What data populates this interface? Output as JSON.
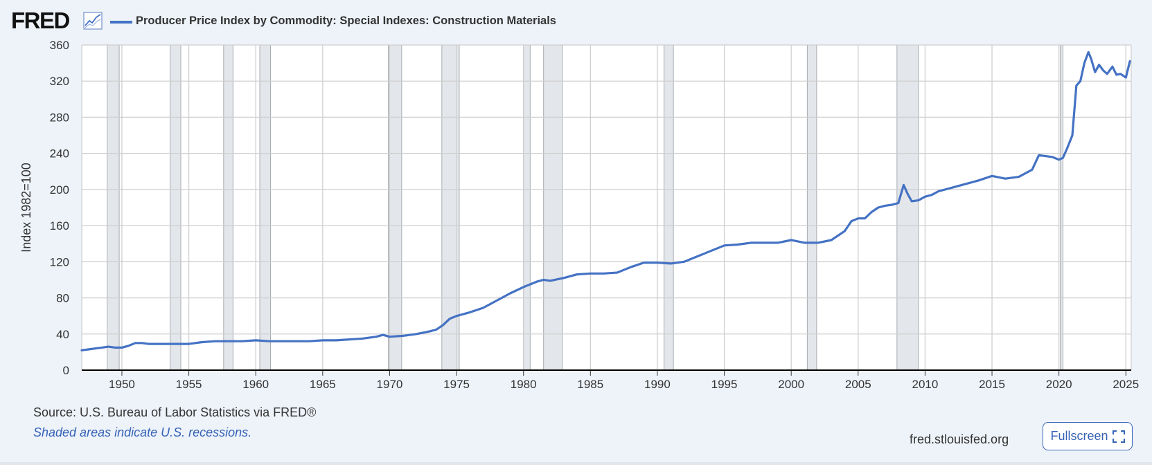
{
  "brand": {
    "logo_text": "FRED",
    "logo_icon": "line-chart-icon",
    "site_url": "fred.stlouisfed.org"
  },
  "footer": {
    "source": "Source: U.S. Bureau of Labor Statistics via FRED®",
    "recession_note": "Shaded areas indicate U.S. recessions.",
    "fullscreen_label": "Fullscreen",
    "fullscreen_icon": "expand-icon"
  },
  "colors": {
    "series": "#4472c4",
    "recession_shade": "#e3e6ea",
    "background": "#eef3fa",
    "accent": "#3562b5"
  },
  "chart_data": {
    "type": "line",
    "title": "Producer Price Index by Commodity: Special Indexes: Construction Materials",
    "xlabel": "",
    "ylabel": "Index 1982=100",
    "xlim": [
      1947.0,
      2025.4
    ],
    "ylim": [
      0,
      360
    ],
    "x_ticks": [
      "1950",
      "1955",
      "1960",
      "1965",
      "1970",
      "1975",
      "1980",
      "1985",
      "1990",
      "1995",
      "2000",
      "2005",
      "2010",
      "2015",
      "2020",
      "2025"
    ],
    "y_ticks": [
      "0",
      "40",
      "80",
      "120",
      "160",
      "200",
      "240",
      "280",
      "320",
      "360"
    ],
    "grid": true,
    "legend": "top-left",
    "recessions": [
      [
        1948.9,
        1949.8
      ],
      [
        1953.6,
        1954.4
      ],
      [
        1957.6,
        1958.3
      ],
      [
        1960.3,
        1961.1
      ],
      [
        1969.9,
        1970.9
      ],
      [
        1973.9,
        1975.2
      ],
      [
        1980.0,
        1980.5
      ],
      [
        1981.5,
        1982.9
      ],
      [
        1990.5,
        1991.2
      ],
      [
        2001.2,
        2001.9
      ],
      [
        2007.9,
        2009.5
      ],
      [
        2020.1,
        2020.3
      ]
    ],
    "series": [
      {
        "name": "Producer Price Index by Commodity: Special Indexes: Construction Materials",
        "x": [
          1947.0,
          1947.5,
          1948.0,
          1948.5,
          1949.0,
          1949.5,
          1950.0,
          1950.5,
          1951.0,
          1951.5,
          1952.0,
          1953.0,
          1954.0,
          1955.0,
          1956.0,
          1957.0,
          1958.0,
          1959.0,
          1960.0,
          1961.0,
          1962.0,
          1963.0,
          1964.0,
          1965.0,
          1966.0,
          1967.0,
          1968.0,
          1969.0,
          1969.5,
          1970.0,
          1971.0,
          1972.0,
          1973.0,
          1973.5,
          1974.0,
          1974.5,
          1975.0,
          1976.0,
          1977.0,
          1978.0,
          1979.0,
          1980.0,
          1981.0,
          1981.5,
          1982.0,
          1983.0,
          1984.0,
          1985.0,
          1986.0,
          1987.0,
          1988.0,
          1989.0,
          1990.0,
          1991.0,
          1992.0,
          1993.0,
          1994.0,
          1995.0,
          1996.0,
          1997.0,
          1998.0,
          1999.0,
          2000.0,
          2001.0,
          2002.0,
          2003.0,
          2004.0,
          2004.5,
          2005.0,
          2005.5,
          2006.0,
          2006.5,
          2007.0,
          2007.5,
          2008.0,
          2008.4,
          2008.7,
          2009.0,
          2009.5,
          2010.0,
          2010.5,
          2011.0,
          2012.0,
          2013.0,
          2014.0,
          2015.0,
          2016.0,
          2017.0,
          2018.0,
          2018.5,
          2019.0,
          2019.5,
          2020.0,
          2020.3,
          2020.6,
          2021.0,
          2021.3,
          2021.6,
          2021.9,
          2022.2,
          2022.4,
          2022.7,
          2023.0,
          2023.3,
          2023.6,
          2024.0,
          2024.3,
          2024.6,
          2025.0,
          2025.3
        ],
        "values": [
          22,
          23,
          24,
          25,
          26,
          25,
          25,
          27,
          30,
          30,
          29,
          29,
          29,
          29,
          31,
          32,
          32,
          32,
          33,
          32,
          32,
          32,
          32,
          33,
          33,
          34,
          35,
          37,
          39,
          37,
          38,
          40,
          43,
          45,
          50,
          57,
          60,
          64,
          69,
          77,
          85,
          92,
          98,
          100,
          99,
          102,
          106,
          107,
          107,
          108,
          114,
          119,
          119,
          118,
          120,
          126,
          132,
          138,
          139,
          141,
          141,
          141,
          144,
          141,
          141,
          144,
          154,
          165,
          168,
          168,
          175,
          180,
          182,
          183,
          185,
          205,
          195,
          187,
          188,
          192,
          194,
          198,
          202,
          206,
          210,
          215,
          212,
          214,
          222,
          238,
          237,
          236,
          233,
          235,
          245,
          260,
          315,
          320,
          340,
          352,
          345,
          330,
          338,
          332,
          328,
          336,
          327,
          328,
          324,
          342
        ]
      }
    ]
  }
}
